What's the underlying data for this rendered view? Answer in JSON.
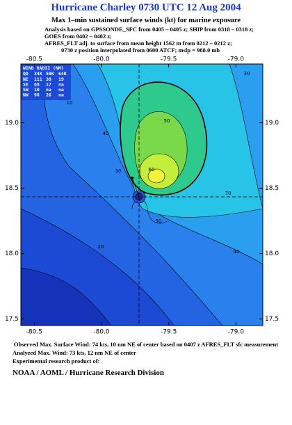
{
  "header": {
    "title": "Hurricane Charley 0730 UTC 12 Aug 2004",
    "subtitle": "Max 1–min sustained surface winds (kt) for marine exposure",
    "lines": [
      "Analysis based on  GPSSONDE_SFC from 0405 – 0405 z;  SHIP from 0318 – 0318 z;",
      "GOES from 0402 – 0402 z;",
      "AFRES_FLT adj. to surface from mean height 1562 m from 0212 – 0212 z;",
      "0730 z position interpolated from 0600 ATCF; mslp = 988.0 mb"
    ]
  },
  "map": {
    "xlim": [
      -80.6,
      -78.8
    ],
    "ylim": [
      17.45,
      19.45
    ],
    "xticks": [
      -80.5,
      {
        "value": -80,
        "label": "-80.0"
      },
      -79.5,
      {
        "value": -79,
        "label": "-79.0"
      }
    ],
    "yticks": [
      17.5,
      {
        "value": 18,
        "label": "18.0"
      },
      18.5,
      {
        "value": 19,
        "label": "19.0"
      }
    ],
    "contour_labels": [
      "10",
      "20",
      "30",
      "40",
      "50",
      "60",
      "70",
      "50",
      "40",
      "30"
    ],
    "wind_radii": {
      "title": "WIND RADII (NM)",
      "header": [
        "QD",
        "34K",
        "50K",
        "64K"
      ],
      "rows": [
        [
          "NE",
          "111",
          "38",
          "19"
        ],
        [
          "SE",
          "68",
          "17",
          "na"
        ],
        [
          "SW",
          "10",
          "na",
          "na"
        ],
        [
          "NW",
          "98",
          "26",
          "na"
        ]
      ]
    }
  },
  "footer": [
    "Observed Max. Surface Wind: 74 kts, 10 nm NE of center based on 0407 z AFRES_FLT sfc measurement",
    "Analyzed Max. Wind: 73 kts, 12 nm NE of center",
    "Experimental research product of:",
    "NOAA / AOML / Hurricane Research Division"
  ]
}
